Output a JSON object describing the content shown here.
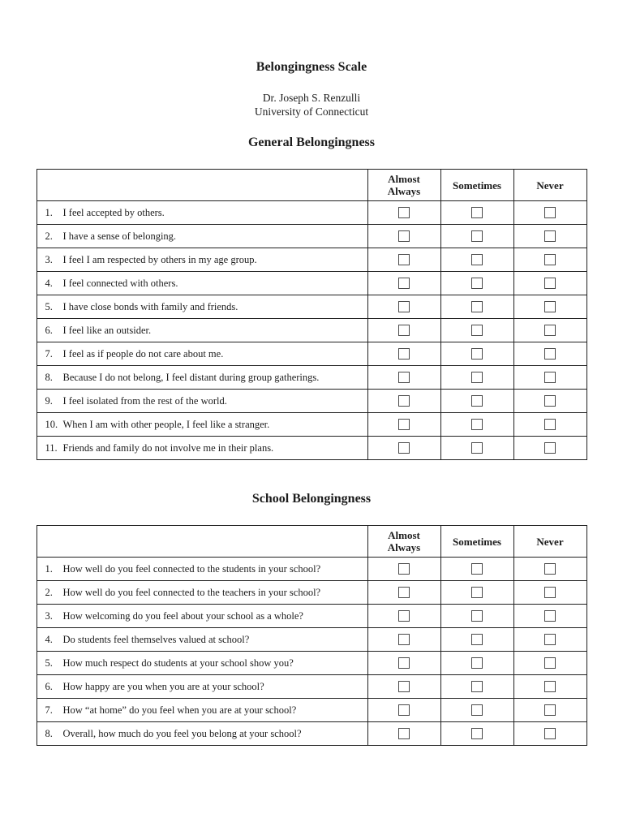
{
  "page": {
    "title": "Belongingness Scale",
    "author": "Dr. Joseph S. Renzulli",
    "institution": "University of Connecticut"
  },
  "columns": [
    "Almost Always",
    "Sometimes",
    "Never"
  ],
  "sections": [
    {
      "heading": "General Belongingness",
      "items": [
        {
          "num": "1.",
          "text": "I feel accepted by others."
        },
        {
          "num": "2.",
          "text": "I have a sense of belonging."
        },
        {
          "num": "3.",
          "text": "I feel I am respected by others in my age group."
        },
        {
          "num": "4.",
          "text": "I feel connected with others."
        },
        {
          "num": "5.",
          "text": "I have close bonds with family and friends."
        },
        {
          "num": "6.",
          "text": "I feel like an outsider."
        },
        {
          "num": "7.",
          "text": "I feel as if people do not care about me."
        },
        {
          "num": "8.",
          "text": "Because I do not belong, I feel distant during group gatherings."
        },
        {
          "num": "9.",
          "text": "I feel isolated from the rest of the world."
        },
        {
          "num": "10.",
          "text": "When I am with other people, I feel like a stranger."
        },
        {
          "num": "11.",
          "text": "Friends and family do not involve me in their plans."
        }
      ]
    },
    {
      "heading": "School Belongingness",
      "items": [
        {
          "num": "1.",
          "text": "How well do you feel connected to the students in your school?"
        },
        {
          "num": "2.",
          "text": "How well do you feel connected to the teachers in your school?"
        },
        {
          "num": "3.",
          "text": "How welcoming do you feel about your school as a whole?"
        },
        {
          "num": "4.",
          "text": "Do students feel themselves valued at school?"
        },
        {
          "num": "5.",
          "text": "How much respect do students at your school show you?"
        },
        {
          "num": "6.",
          "text": "How happy are you when you are at your school?"
        },
        {
          "num": "7.",
          "text": "How “at home” do you feel when you are at your school?"
        },
        {
          "num": "8.",
          "text": "Overall, how much do you feel you belong at your school?"
        }
      ]
    }
  ],
  "checkbox_state": "all-unchecked"
}
